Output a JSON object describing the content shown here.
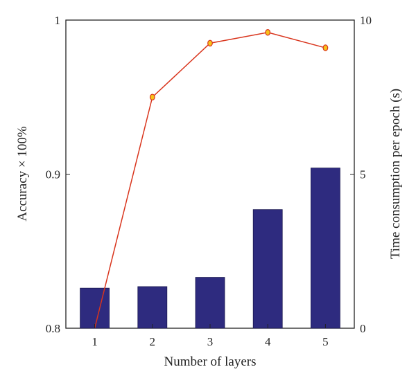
{
  "chart_data": {
    "type": "bar+line",
    "title": "",
    "xlabel": "Number of layers",
    "ylabel_left": "Accuracy × 100%",
    "ylabel_right": "Time consumption per epoch (s)",
    "categories": [
      "1",
      "2",
      "3",
      "4",
      "5"
    ],
    "y_left_range": [
      0.8,
      1.0
    ],
    "y_left_ticks": [
      "0.8",
      "0.9",
      "1"
    ],
    "y_right_range": [
      0,
      10
    ],
    "y_right_ticks": [
      "0",
      "5",
      "10"
    ],
    "grid": false,
    "series": [
      {
        "kind": "bar",
        "axis": "right",
        "values": [
          1.3,
          1.35,
          1.65,
          3.85,
          5.2
        ],
        "color": "#2e2b7f"
      },
      {
        "kind": "line",
        "axis": "left",
        "values": [
          0.8,
          0.95,
          0.985,
          0.992,
          0.982
        ],
        "line_color": "#d9341c",
        "marker_color": "#f6c21a"
      }
    ]
  }
}
